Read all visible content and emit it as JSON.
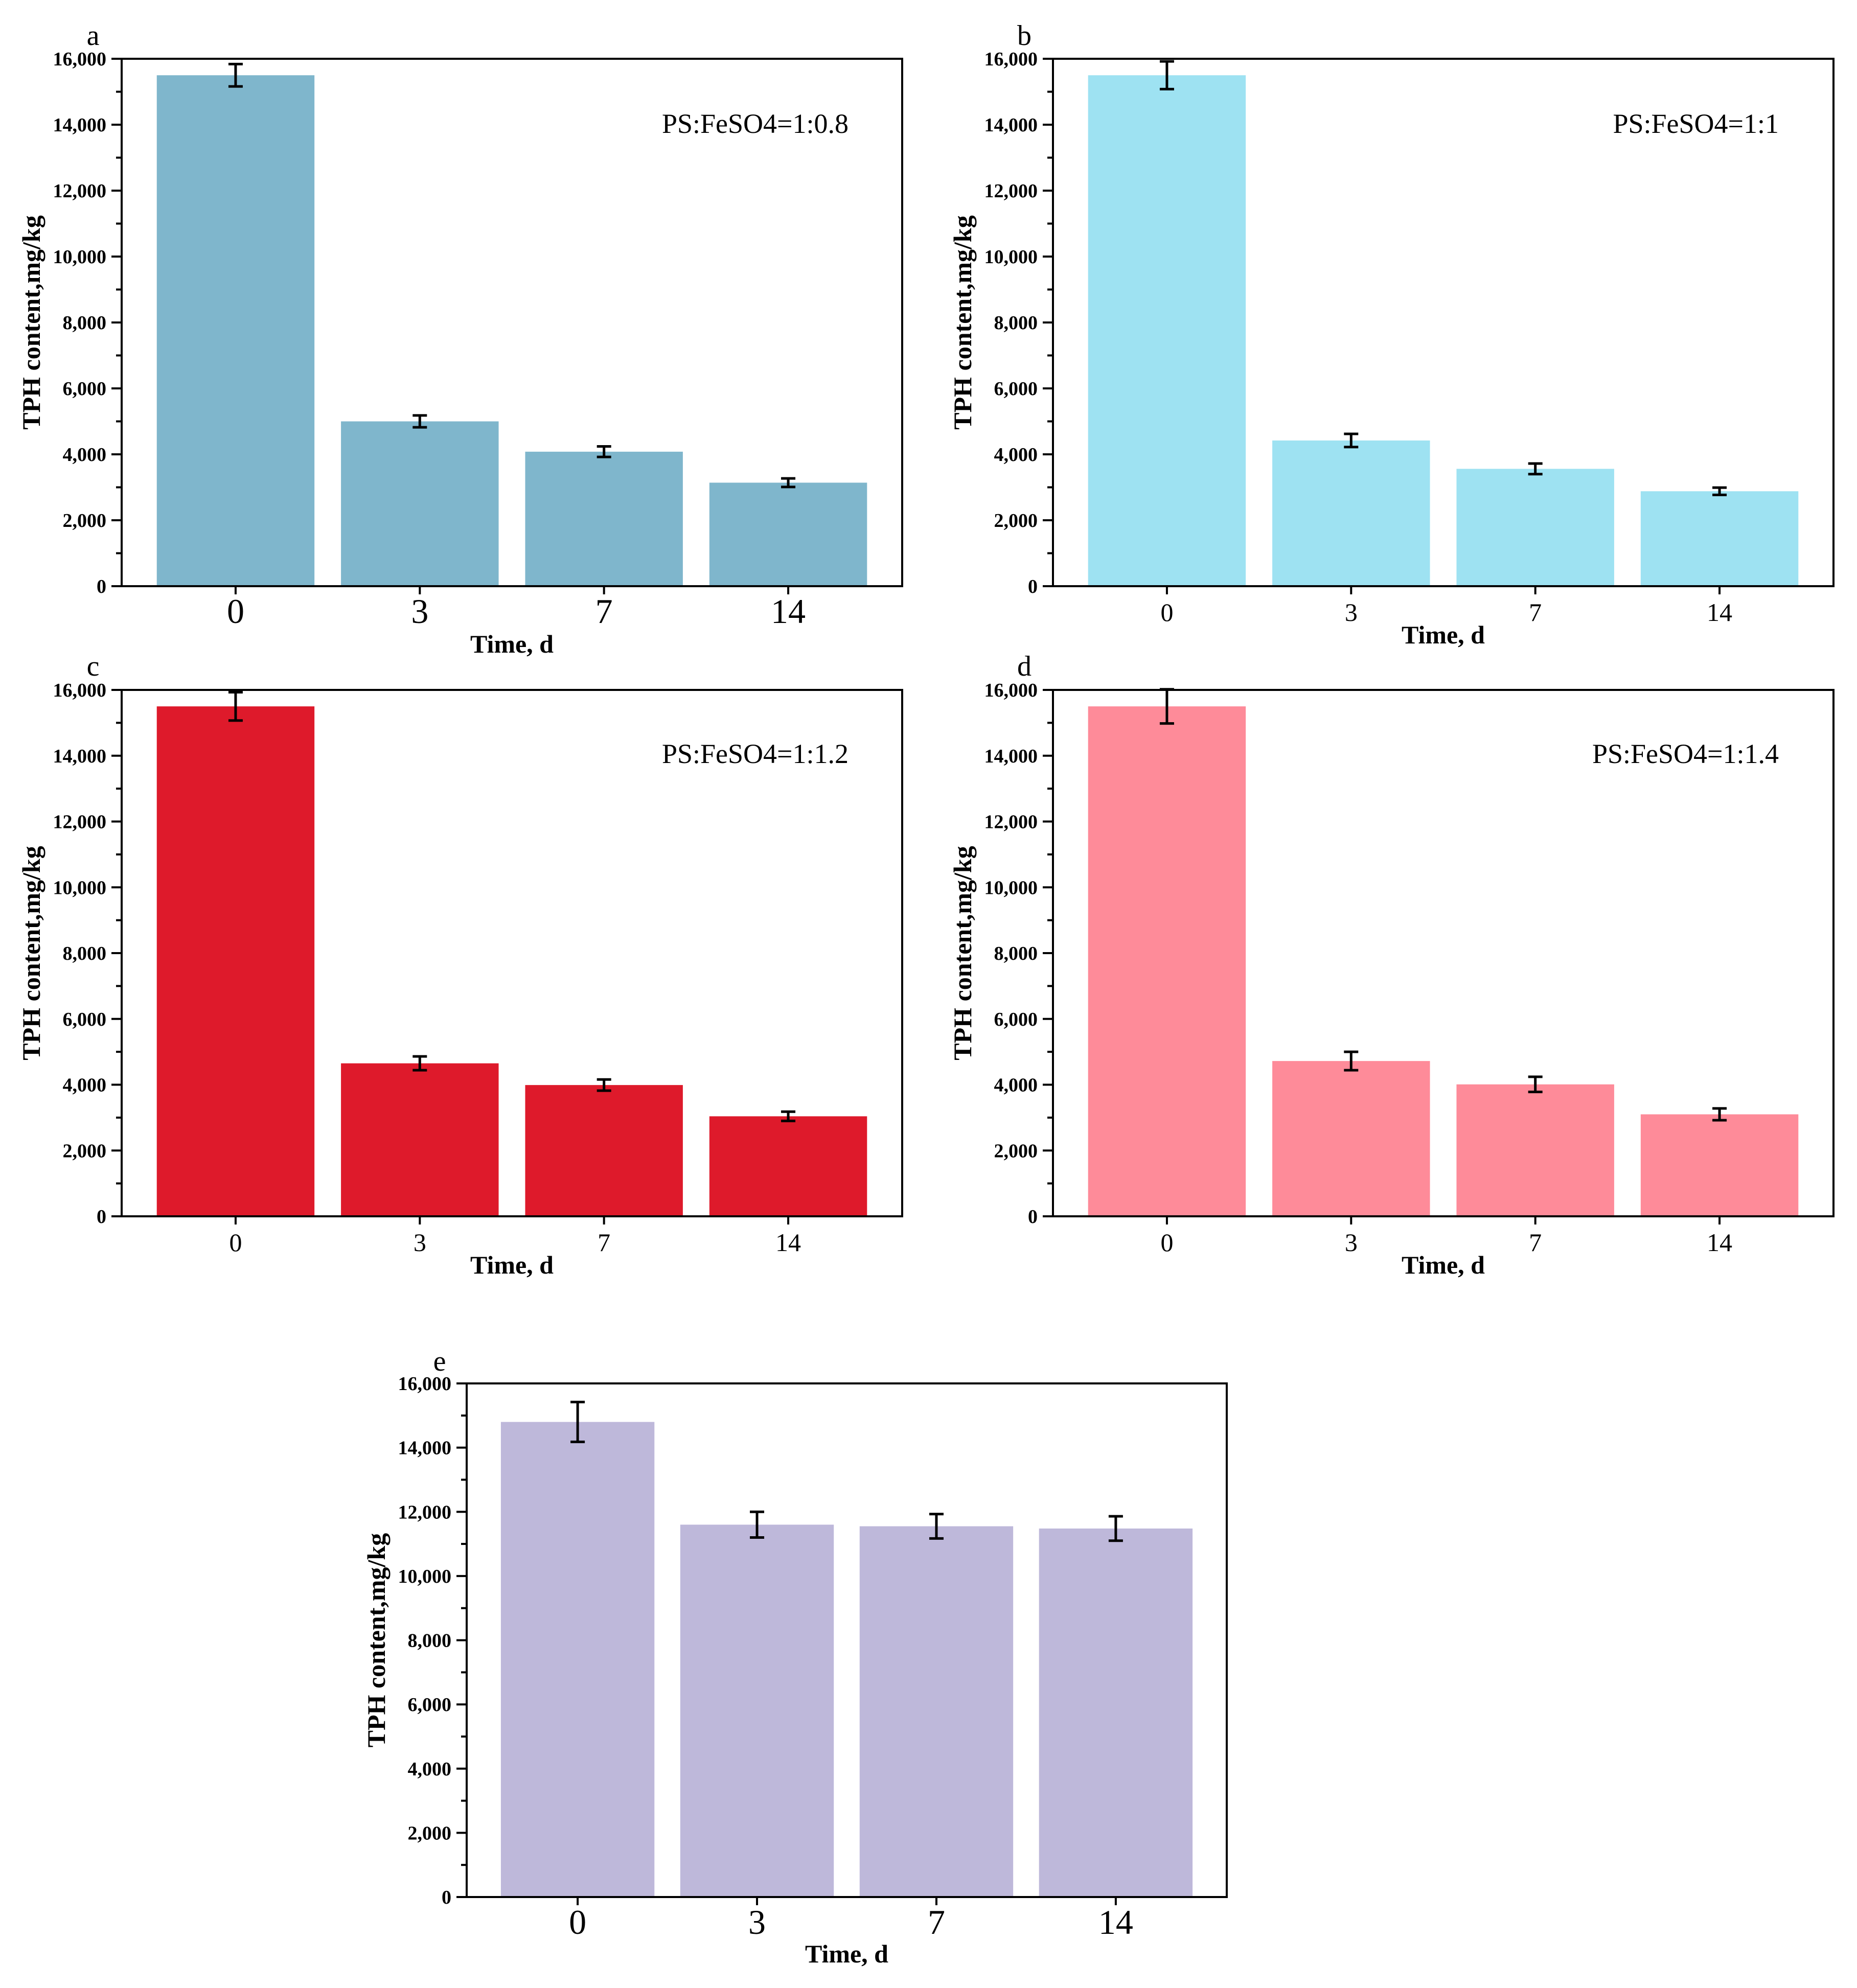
{
  "chart_data": [
    {
      "panel": "a",
      "type": "bar",
      "annotation": "PS:FeSO4=1:0.8",
      "categories": [
        "0",
        "3",
        "7",
        "14"
      ],
      "values": [
        15500,
        5000,
        4080,
        3140
      ],
      "errors": [
        340,
        180,
        160,
        130
      ],
      "xlabel": "Time, d",
      "ylabel": "TPH content,mg/kg",
      "ylim": [
        0,
        16000
      ],
      "yticks": [
        "0",
        "2,000",
        "4,000",
        "6,000",
        "8,000",
        "10,000",
        "12,000",
        "14,000",
        "16,000"
      ],
      "color": "#7fb6cc"
    },
    {
      "panel": "b",
      "type": "bar",
      "annotation": "PS:FeSO4=1:1",
      "categories": [
        "0",
        "3",
        "7",
        "14"
      ],
      "values": [
        15500,
        4420,
        3560,
        2880
      ],
      "errors": [
        420,
        200,
        160,
        110
      ],
      "xlabel": "Time, d",
      "ylabel": "TPH content,mg/kg",
      "ylim": [
        0,
        16000
      ],
      "yticks": [
        "0",
        "2,000",
        "4,000",
        "6,000",
        "8,000",
        "10,000",
        "12,000",
        "14,000",
        "16,000"
      ],
      "color": "#9ee2f2"
    },
    {
      "panel": "c",
      "type": "bar",
      "annotation": "PS:FeSO4=1:1.2",
      "categories": [
        "0",
        "3",
        "7",
        "14"
      ],
      "values": [
        15500,
        4650,
        3990,
        3040
      ],
      "errors": [
        430,
        210,
        170,
        140
      ],
      "xlabel": "Time, d",
      "ylabel": "TPH content,mg/kg",
      "ylim": [
        0,
        16000
      ],
      "yticks": [
        "0",
        "2,000",
        "4,000",
        "6,000",
        "8,000",
        "10,000",
        "12,000",
        "14,000",
        "16,000"
      ],
      "color": "#de1a2b"
    },
    {
      "panel": "d",
      "type": "bar",
      "annotation": "PS:FeSO4=1:1.4",
      "categories": [
        "0",
        "3",
        "7",
        "14"
      ],
      "values": [
        15500,
        4720,
        4010,
        3100
      ],
      "errors": [
        520,
        280,
        230,
        180
      ],
      "xlabel": "Time, d",
      "ylabel": "TPH content,mg/kg",
      "ylim": [
        0,
        16000
      ],
      "yticks": [
        "0",
        "2,000",
        "4,000",
        "6,000",
        "8,000",
        "10,000",
        "12,000",
        "14,000",
        "16,000"
      ],
      "color": "#fe8b99"
    },
    {
      "panel": "e",
      "type": "bar",
      "annotation": "",
      "categories": [
        "0",
        "3",
        "7",
        "14"
      ],
      "values": [
        14800,
        11600,
        11550,
        11480
      ],
      "errors": [
        620,
        400,
        380,
        380
      ],
      "xlabel": "Time, d",
      "ylabel": "TPH content,mg/kg",
      "ylim": [
        0,
        16000
      ],
      "yticks": [
        "0",
        "2,000",
        "4,000",
        "6,000",
        "8,000",
        "10,000",
        "12,000",
        "14,000",
        "16,000"
      ],
      "color": "#beb8da"
    }
  ]
}
